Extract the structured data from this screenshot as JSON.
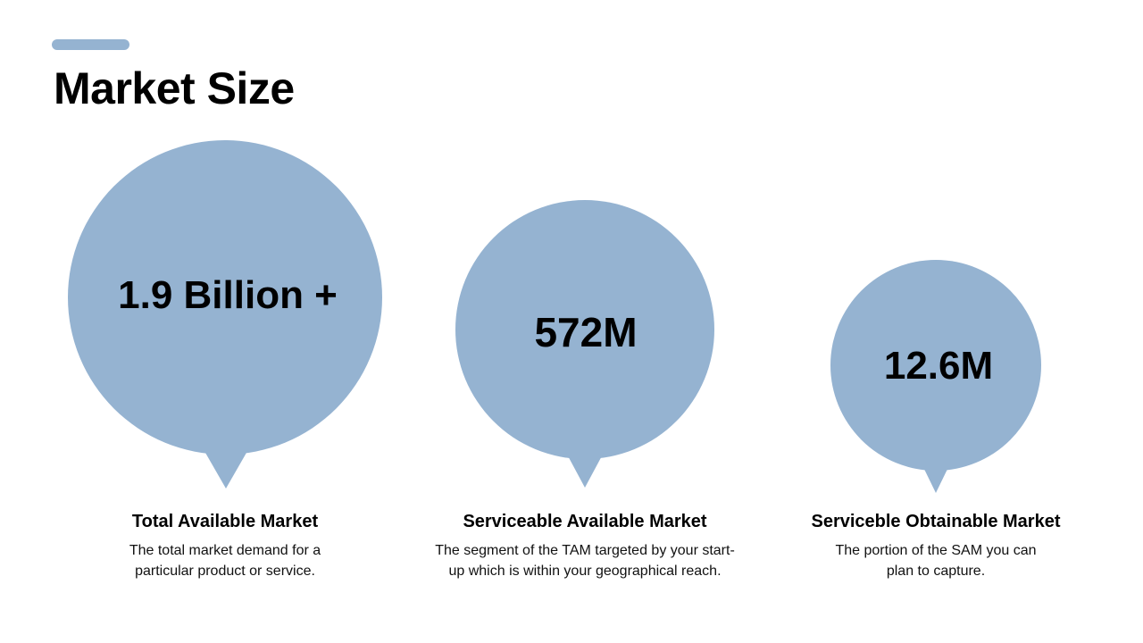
{
  "slide": {
    "title": "Market Size",
    "accent_color": "#95B3D1",
    "bubble_color": "#95B3D1"
  },
  "markets": [
    {
      "value": "1.9 Billion +",
      "label": "Total Available Market",
      "description_line1": "The total market demand for a",
      "description_line2": "particular product or service."
    },
    {
      "value": "572M",
      "label": "Serviceable Available Market",
      "description_line1": "The segment of the TAM targeted by your start-",
      "description_line2": "up which is within your geographical reach."
    },
    {
      "value": "12.6M",
      "label": "Serviceble Obtainable Market",
      "description_line1": "The portion of the SAM you can",
      "description_line2": "plan to capture."
    }
  ]
}
